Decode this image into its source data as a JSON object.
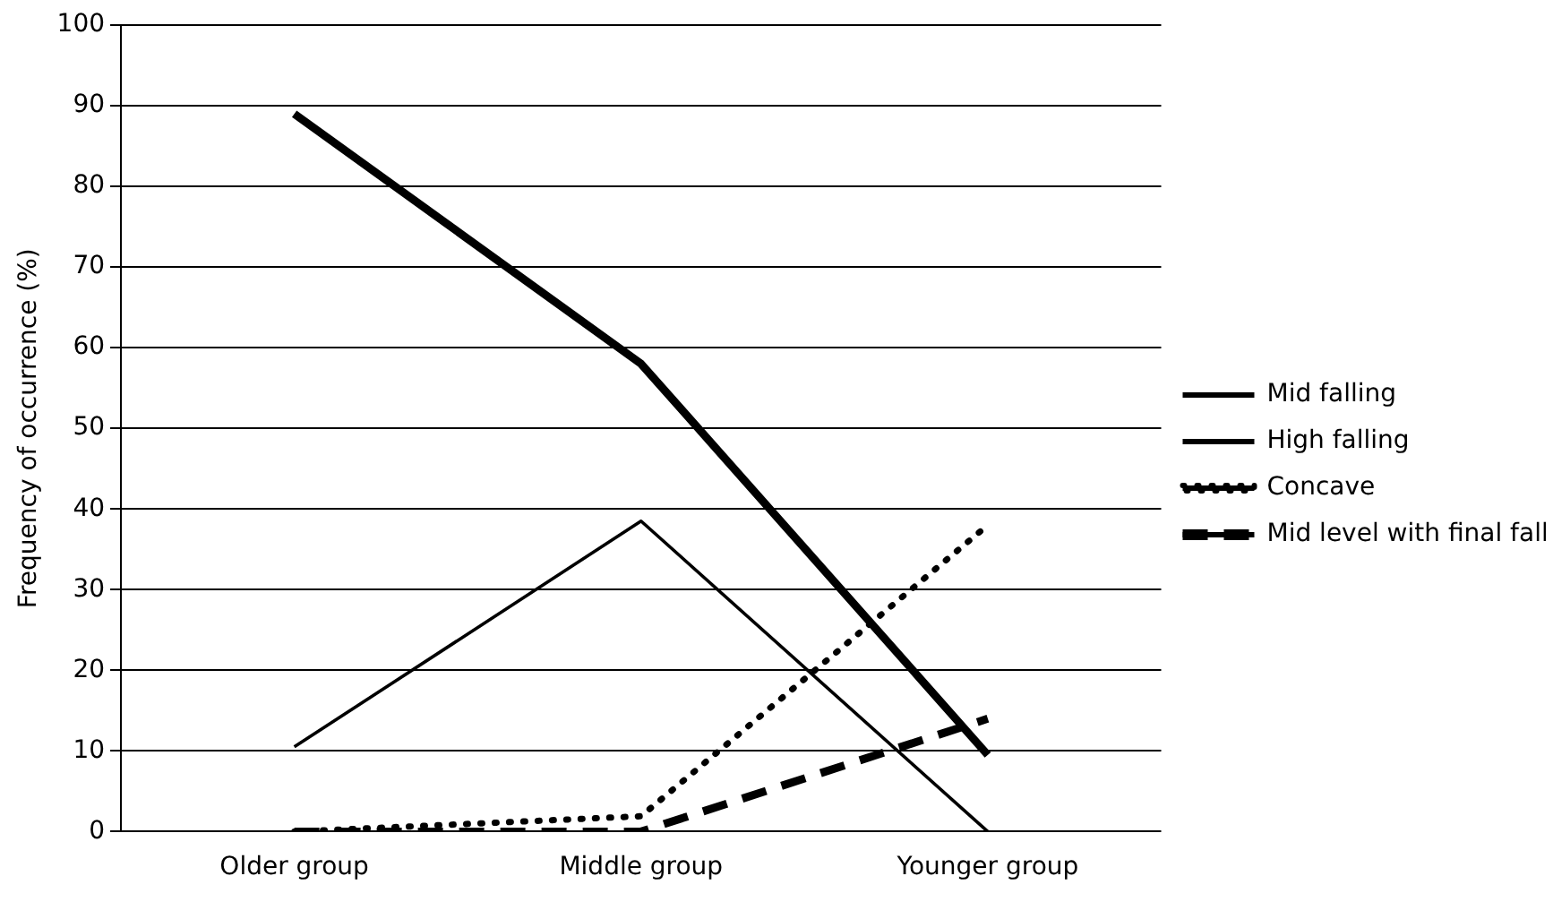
{
  "chart_data": {
    "type": "line",
    "ylabel": "Frequency of occurrence (%)",
    "categories": [
      "Older group",
      "Middle group",
      "Younger group"
    ],
    "ylim": [
      0,
      100
    ],
    "yticks": [
      0,
      10,
      20,
      30,
      40,
      50,
      60,
      70,
      80,
      90,
      100
    ],
    "grid": "y",
    "legend": "right",
    "marker": "none",
    "series": [
      {
        "name": "Mid falling",
        "color": "#000000",
        "line_style": "solid",
        "values": [
          89,
          58,
          9.5
        ]
      },
      {
        "name": "High falling",
        "color": "#000000",
        "line_style": "solid",
        "values": [
          10.5,
          38.5,
          0
        ]
      },
      {
        "name": "Concave",
        "color": "#000000",
        "line_style": "dotted",
        "values": [
          0,
          1.9,
          38
        ]
      },
      {
        "name": "Mid level with final fall",
        "color": "#000000",
        "line_style": "dashed",
        "values": [
          0,
          0,
          14
        ]
      }
    ]
  }
}
